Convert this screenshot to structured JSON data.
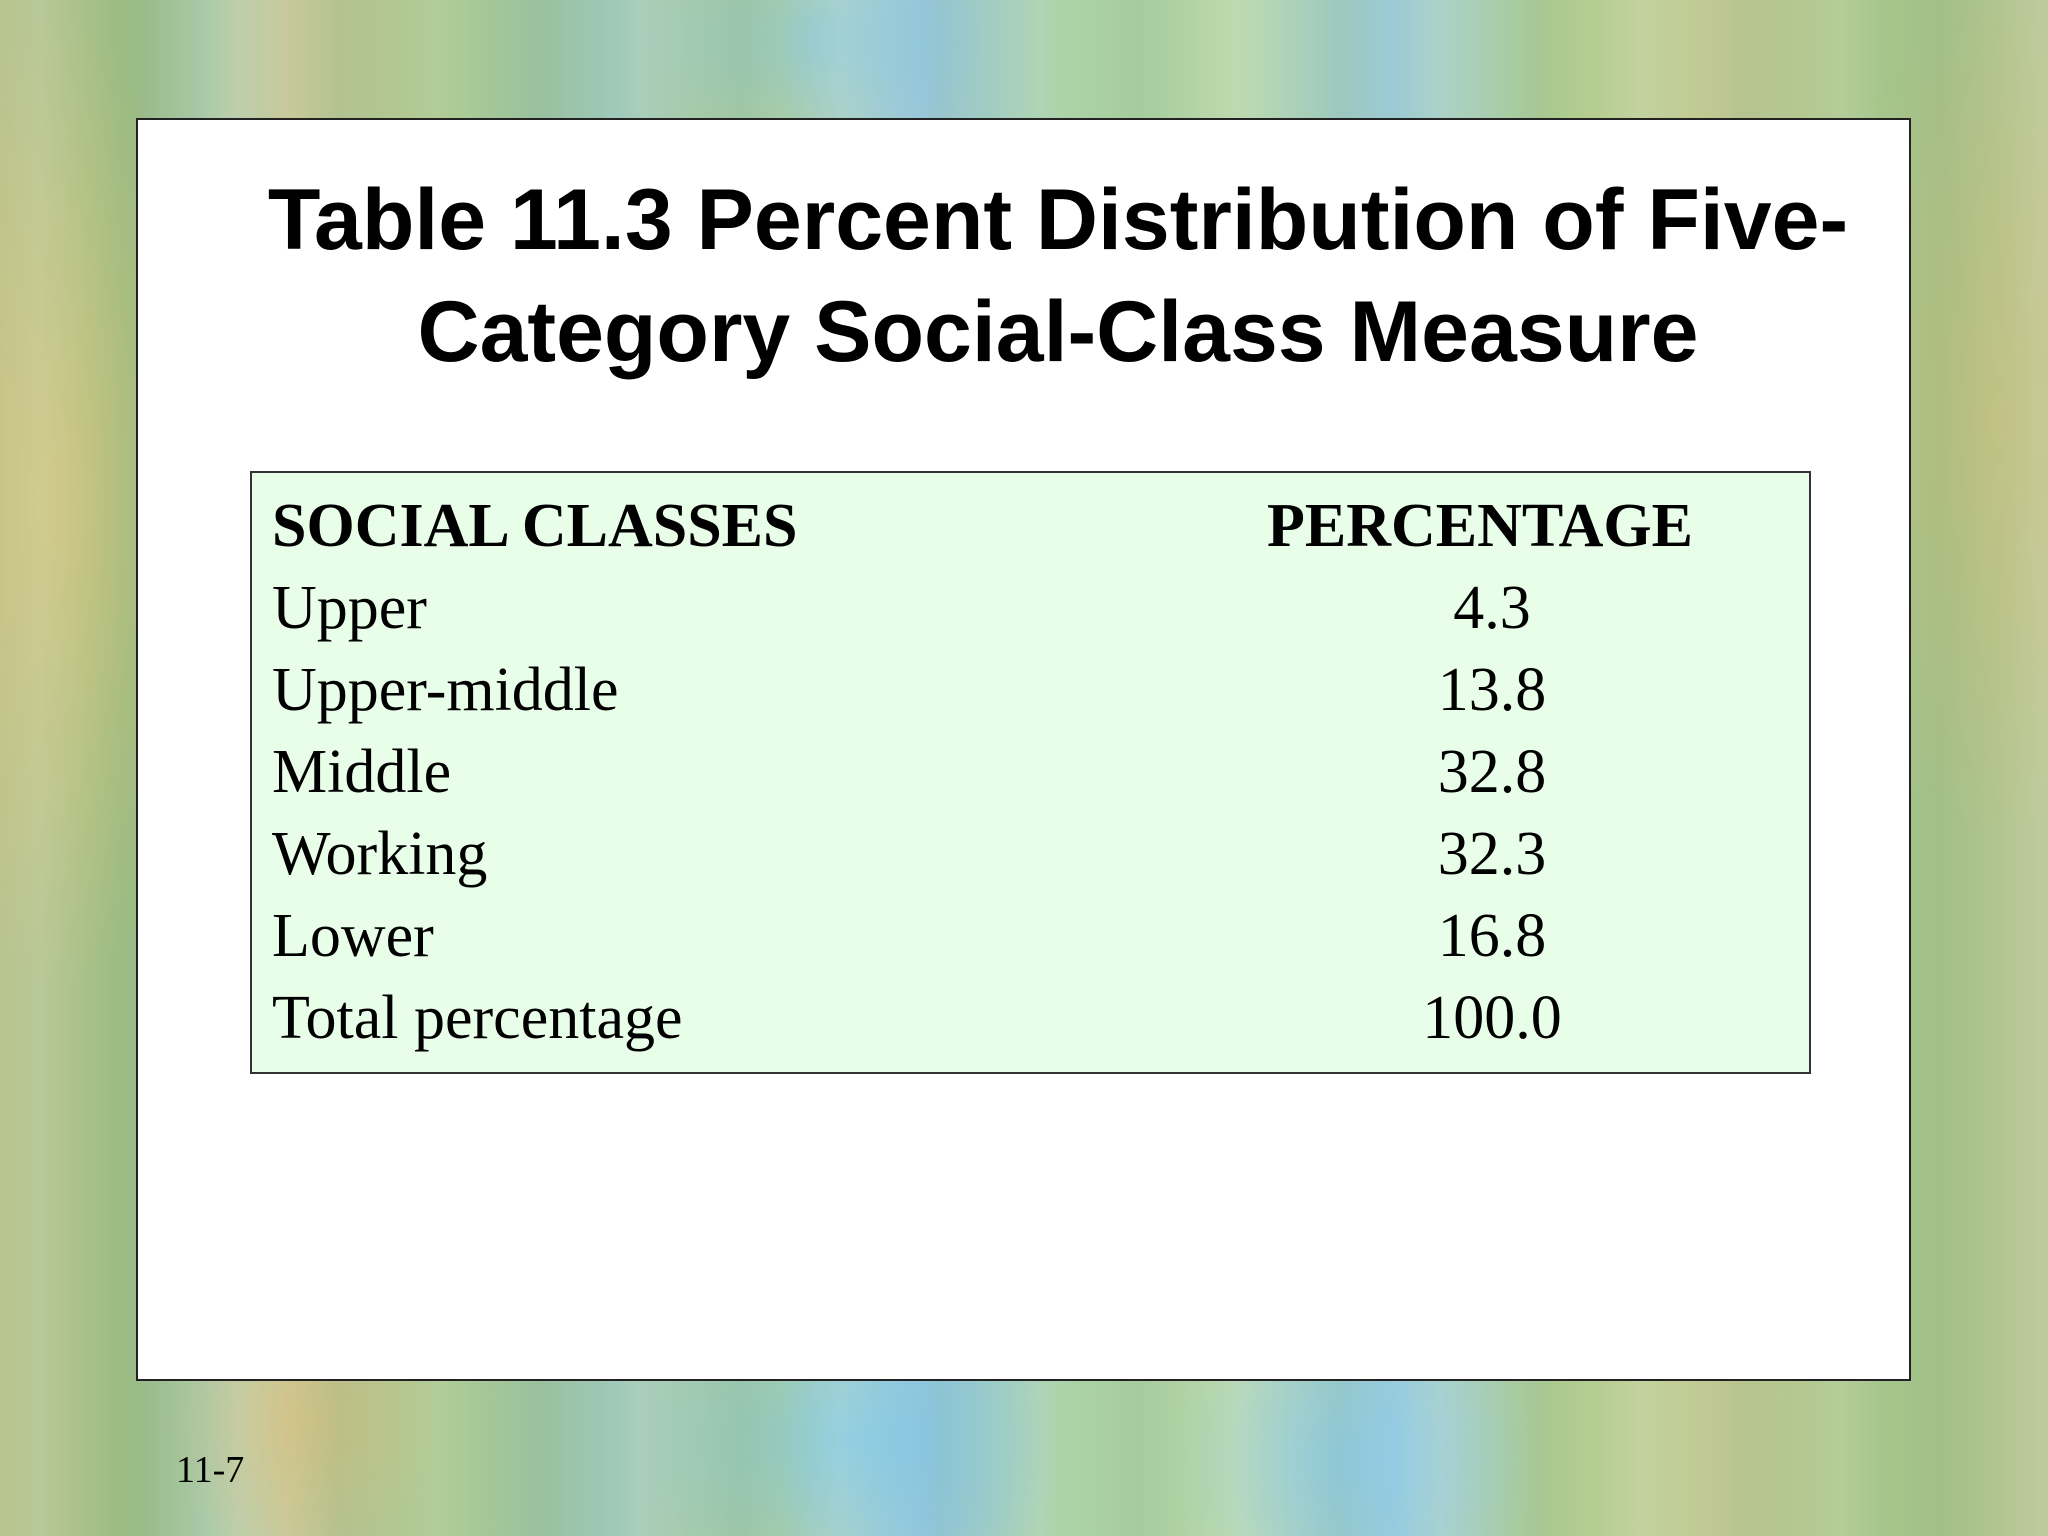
{
  "slide": {
    "title_line1": "Table 11.3 Percent Distribution of Five-",
    "title_line2": "Category Social-Class Measure",
    "slide_number": "11-7"
  },
  "table": {
    "header": {
      "social_classes": "SOCIAL CLASSES",
      "percentage": "PERCENTAGE"
    },
    "rows": [
      {
        "class": "Upper",
        "percentage": "4.3"
      },
      {
        "class": "Upper-middle",
        "percentage": "13.8"
      },
      {
        "class": "Middle",
        "percentage": "32.8"
      },
      {
        "class": "Working",
        "percentage": "32.3"
      },
      {
        "class": "Lower",
        "percentage": "16.8"
      },
      {
        "class": "Total percentage",
        "percentage": "100.0"
      }
    ]
  },
  "colors": {
    "table_background": "#e8fee8",
    "panel_background": "#ffffff"
  }
}
